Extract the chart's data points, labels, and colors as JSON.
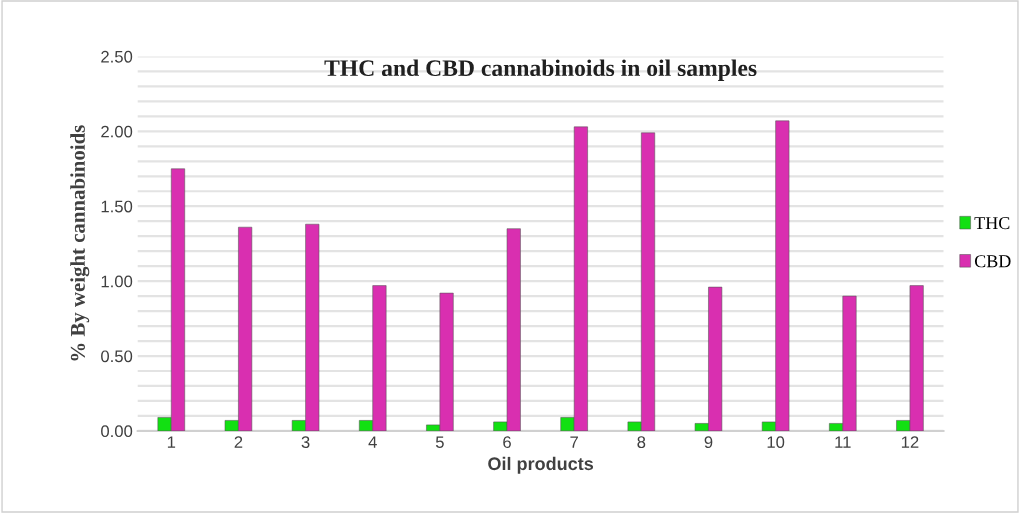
{
  "chart_data": {
    "type": "bar",
    "title": "THC and CBD cannabinoids in oil samples",
    "xlabel": "Oil products",
    "ylabel": "% By weight cannabinoids",
    "categories": [
      "1",
      "2",
      "3",
      "4",
      "5",
      "6",
      "7",
      "8",
      "9",
      "10",
      "11",
      "12"
    ],
    "series": [
      {
        "name": "THC",
        "color": "#12e012",
        "values": [
          0.09,
          0.07,
          0.07,
          0.07,
          0.04,
          0.06,
          0.09,
          0.06,
          0.05,
          0.06,
          0.05,
          0.07
        ]
      },
      {
        "name": "CBD",
        "color": "#d92fb0",
        "values": [
          1.75,
          1.36,
          1.38,
          0.97,
          0.92,
          1.35,
          2.03,
          1.99,
          0.96,
          2.07,
          0.9,
          0.97
        ]
      }
    ],
    "ylim": [
      0,
      2.5
    ],
    "yticks": [
      {
        "value": 0,
        "label": "0.00"
      },
      {
        "value": 0.1,
        "label": null
      },
      {
        "value": 0.2,
        "label": null
      },
      {
        "value": 0.3,
        "label": null
      },
      {
        "value": 0.4,
        "label": null
      },
      {
        "value": 0.5,
        "label": "0.50"
      },
      {
        "value": 0.6,
        "label": null
      },
      {
        "value": 0.7,
        "label": null
      },
      {
        "value": 0.8,
        "label": null
      },
      {
        "value": 0.9,
        "label": null
      },
      {
        "value": 1.0,
        "label": "1.00"
      },
      {
        "value": 1.1,
        "label": null
      },
      {
        "value": 1.2,
        "label": null
      },
      {
        "value": 1.3,
        "label": null
      },
      {
        "value": 1.4,
        "label": null
      },
      {
        "value": 1.5,
        "label": "1.50"
      },
      {
        "value": 1.6,
        "label": null
      },
      {
        "value": 1.7,
        "label": null
      },
      {
        "value": 1.8,
        "label": null
      },
      {
        "value": 1.9,
        "label": null
      },
      {
        "value": 2.0,
        "label": "2.00"
      },
      {
        "value": 2.1,
        "label": null
      },
      {
        "value": 2.2,
        "label": null
      },
      {
        "value": 2.3,
        "label": null
      },
      {
        "value": 2.4,
        "label": null
      },
      {
        "value": 2.5,
        "label": "2.50"
      }
    ],
    "grid": "y",
    "legend": "right"
  }
}
